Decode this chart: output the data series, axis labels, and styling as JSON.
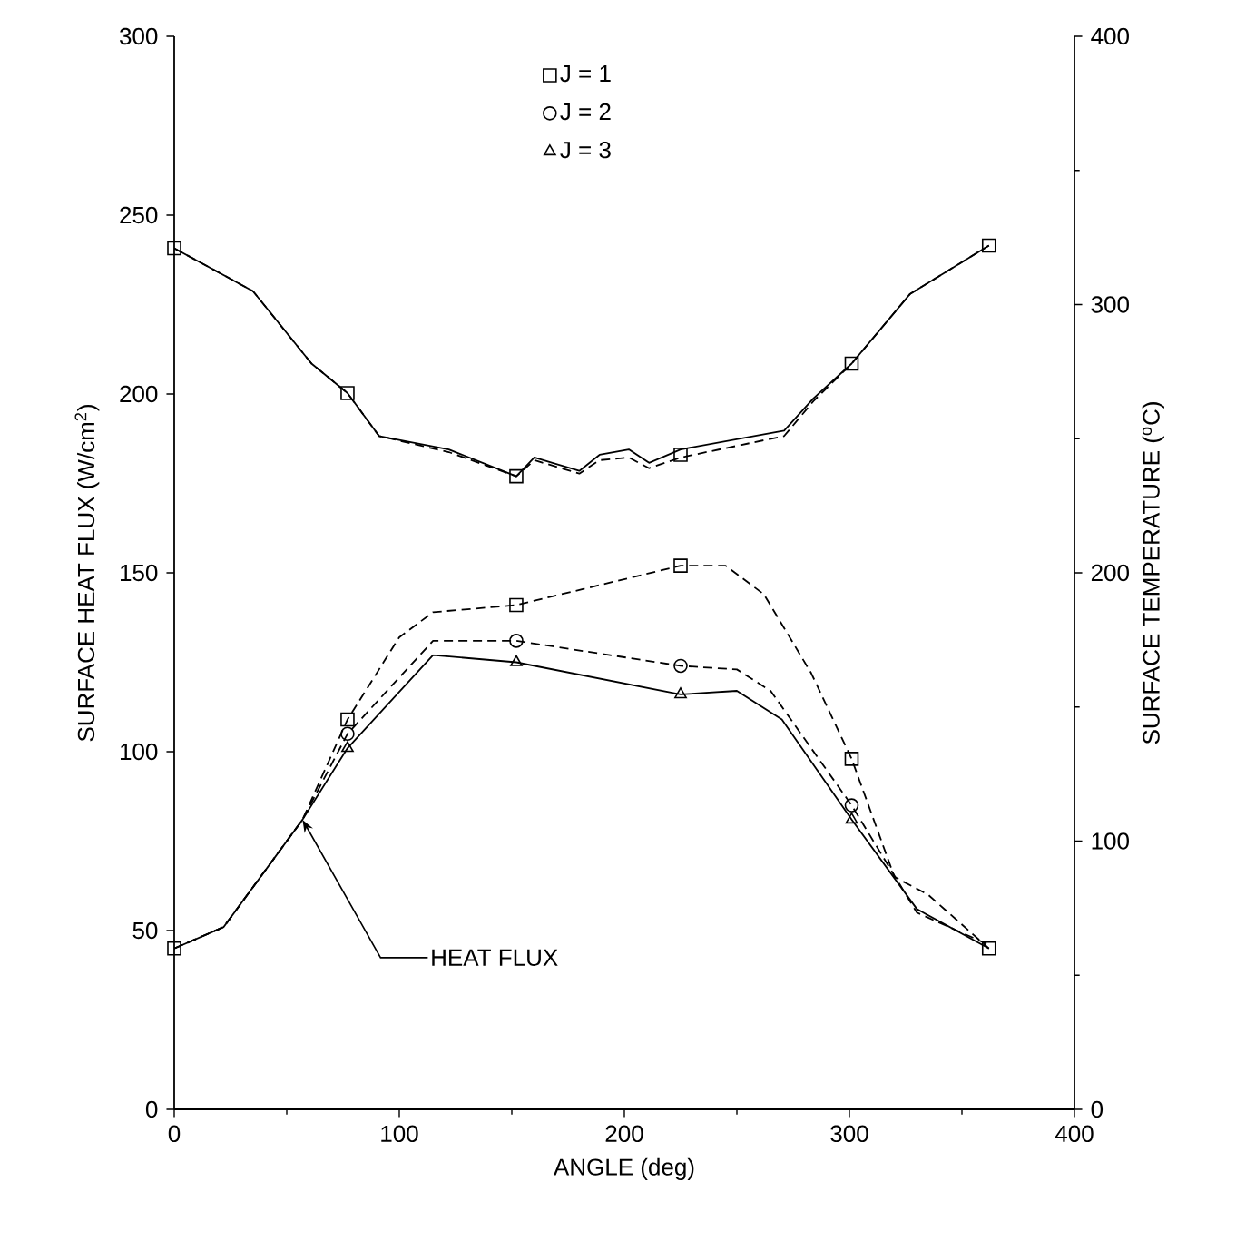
{
  "chart_data": {
    "type": "line",
    "xlabel": "ANGLE (deg)",
    "ylabel": "SURFACE HEAT FLUX (W/cm$^{2}$)",
    "y2label": "SURFACE TEMPERATURE ($^{o}$C)",
    "xlim": [
      0,
      400
    ],
    "xticks": [
      0,
      100,
      200,
      300,
      400
    ],
    "ylim": [
      0,
      300
    ],
    "yticks": [
      0,
      50,
      100,
      150,
      200,
      250,
      300
    ],
    "y2lim": [
      0,
      400
    ],
    "y2ticks": [
      0,
      100,
      200,
      300,
      400
    ],
    "legend": "top",
    "grid": false,
    "annotations": [
      {
        "text": "HEAT FLUX",
        "x": 57,
        "y": 81
      }
    ],
    "series": [
      {
        "color": "#000000",
        "line_style": "dashed",
        "x": [
          0,
          22,
          57,
          77,
          100,
          115,
          152,
          225,
          245,
          262,
          283,
          301,
          320,
          335,
          362
        ],
        "values": [
          45,
          51,
          81,
          109,
          132,
          139,
          141,
          152,
          152,
          144,
          122,
          98,
          65,
          60,
          45
        ]
      },
      {
        "color": "#000000",
        "line_style": "dashed",
        "x": [
          0,
          22,
          57,
          77,
          115,
          152,
          225,
          250,
          265,
          301,
          330,
          362
        ],
        "values": [
          45,
          51,
          81,
          105,
          131,
          131,
          124,
          123,
          117,
          85,
          55,
          46
        ]
      },
      {
        "color": "#000000",
        "line_style": "solid",
        "x": [
          0,
          22,
          57,
          77,
          115,
          152,
          225,
          250,
          270,
          301,
          330,
          362
        ],
        "values": [
          45,
          51,
          81,
          101,
          127,
          125,
          116,
          117,
          109,
          81,
          56,
          45
        ]
      },
      {
        "type": "scatter",
        "name": "J = 1",
        "color": "#000000",
        "marker": "square",
        "x": [
          0,
          77,
          152,
          225,
          301,
          362
        ],
        "values": [
          45,
          109,
          141,
          152,
          98,
          45
        ]
      },
      {
        "type": "scatter",
        "name": "J = 2",
        "color": "#000000",
        "marker": "circle",
        "x": [
          77,
          152,
          225,
          301
        ],
        "values": [
          105,
          131,
          124,
          85
        ]
      },
      {
        "type": "scatter",
        "name": "J = 3",
        "color": "#000000",
        "marker": "triangle",
        "x": [
          77,
          152,
          225,
          301
        ],
        "values": [
          101,
          125,
          116,
          81
        ]
      },
      {
        "axis": "y2",
        "color": "#000000",
        "line_style": "solid",
        "x": [
          0,
          35,
          61,
          77,
          91,
          122,
          152,
          160,
          180,
          189,
          202,
          211,
          225,
          271,
          284,
          301,
          327,
          362
        ],
        "values": [
          321,
          305,
          278,
          267,
          251,
          246,
          236,
          243,
          238,
          244,
          246,
          241,
          246,
          253,
          265,
          278,
          304,
          322
        ]
      },
      {
        "axis": "y2",
        "color": "#000000",
        "line_style": "dashed",
        "x": [
          0,
          35,
          61,
          77,
          91,
          122,
          152,
          160,
          180,
          189,
          202,
          211,
          225,
          271,
          284,
          301,
          327,
          362
        ],
        "values": [
          321,
          305,
          278,
          267,
          251,
          245,
          236,
          242,
          237,
          242,
          243,
          239,
          243,
          251,
          264,
          278,
          304,
          322
        ]
      },
      {
        "type": "scatter",
        "axis": "y2",
        "color": "#000000",
        "marker": "square",
        "x": [
          0,
          77,
          152,
          225,
          301,
          362
        ],
        "values": [
          321,
          267,
          236,
          244,
          278,
          322
        ]
      }
    ]
  }
}
